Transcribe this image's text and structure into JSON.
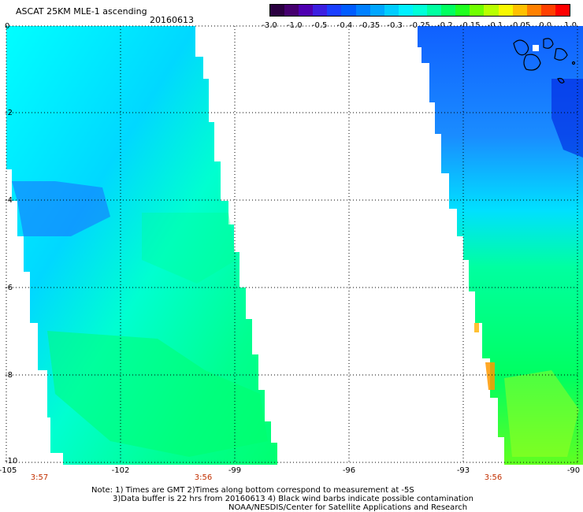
{
  "title": "ASCAT 25KM MLE-1 ascending",
  "date": "20160613",
  "colorbar": {
    "labels": [
      "-3.0",
      "-1.0",
      "-0.5",
      "-0.4",
      "-0.35",
      "-0.3",
      "-0.25",
      "-0.2",
      "-0.15",
      "-0.1",
      "-0.05",
      "0.0",
      "1.0"
    ],
    "colors": [
      "#2a0040",
      "#45006e",
      "#4e00b0",
      "#3b1fe0",
      "#1a3fff",
      "#005cff",
      "#0080ff",
      "#00a6ff",
      "#00ccff",
      "#00f0ff",
      "#00ffd8",
      "#00ffa0",
      "#00ff60",
      "#20ff20",
      "#70ff00",
      "#b8ff00",
      "#f8f800",
      "#ffc000",
      "#ff8000",
      "#ff4000",
      "#ff0000"
    ]
  },
  "axes": {
    "lat_labels": [
      "0",
      "-2",
      "-4",
      "-6",
      "-8",
      "-10"
    ],
    "lon_labels": [
      "-105",
      "-102",
      "-99",
      "-96",
      "-93",
      "-90"
    ]
  },
  "pass_times": [
    "3:57",
    "3:56",
    "3:56"
  ],
  "notes": [
    "Note: 1) Times are GMT 2)Times along bottom correspond to measurement at -5S",
    "3)Data buffer is 22 hrs from 20160613 4) Black wind barbs indicate possible contamination",
    "NOAA/NESDIS/Center for Satellite Applications and Research"
  ],
  "swaths": {
    "west_base_color": "#00e8ff",
    "east_base_color": "#2060ff"
  }
}
